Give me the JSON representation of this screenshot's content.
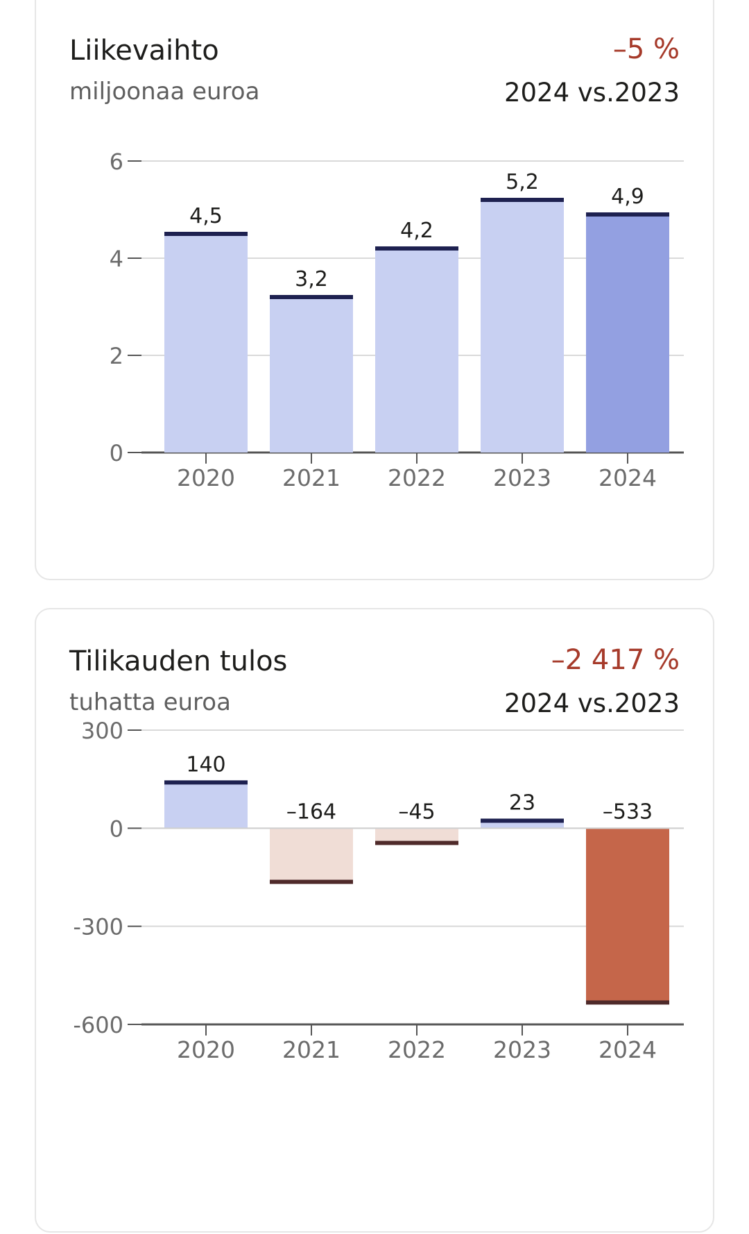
{
  "charts": [
    {
      "title": "Liikevaihto",
      "subtitle": "miljoonaa euroa",
      "change": "–5 %",
      "compare": "2024 vs.2023"
    },
    {
      "title": "Tilikauden tulos",
      "subtitle": "tuhatta euroa",
      "change": "–2 417 %",
      "compare": "2024 vs.2023"
    }
  ],
  "colors": {
    "positive_bar": "#c8d0f2",
    "positive_bar_highlight": "#93a0e1",
    "positive_cap": "#1e2150",
    "negative_bar": "#f0ddd6",
    "negative_bar_highlight": "#c5664a",
    "negative_cap": "#4f2a2a",
    "grid": "#d9d9d9",
    "axis": "#555555",
    "change_text": "#a63a2a"
  },
  "chart_data": [
    {
      "type": "bar",
      "title": "Liikevaihto",
      "subtitle": "miljoonaa euroa",
      "categories": [
        "2020",
        "2021",
        "2022",
        "2023",
        "2024"
      ],
      "values": [
        4.5,
        3.2,
        4.2,
        5.2,
        4.9
      ],
      "value_labels": [
        "4,5",
        "3,2",
        "4,2",
        "5,2",
        "4,9"
      ],
      "highlight_index": 4,
      "ylim": [
        0,
        6
      ],
      "yticks": [
        0,
        2,
        4,
        6
      ],
      "ytick_labels": [
        "0",
        "2",
        "4",
        "6"
      ],
      "grid": true
    },
    {
      "type": "bar",
      "title": "Tilikauden tulos",
      "subtitle": "tuhatta euroa",
      "categories": [
        "2020",
        "2021",
        "2022",
        "2023",
        "2024"
      ],
      "values": [
        140,
        -164,
        -45,
        23,
        -533
      ],
      "value_labels": [
        "140",
        "–164",
        "–45",
        "23",
        "–533"
      ],
      "highlight_index": 4,
      "ylim": [
        -600,
        300
      ],
      "yticks": [
        -600,
        -300,
        0,
        300
      ],
      "ytick_labels": [
        "-600",
        "-300",
        "0",
        "300"
      ],
      "grid": true
    }
  ]
}
